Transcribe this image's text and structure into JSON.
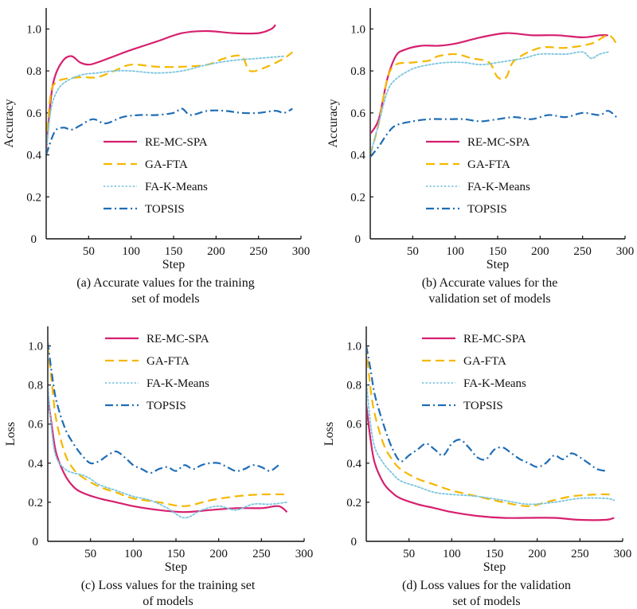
{
  "colors": {
    "RE-MC-SPA": "#d6206f",
    "GA-FTA": "#f5b800",
    "FA-K-Means": "#7cc6df",
    "TOPSIS": "#1f6db5",
    "axis": "#111111"
  },
  "series_styles": {
    "RE-MC-SPA": "solid",
    "GA-FTA": "dashed",
    "FA-K-Means": "dotted",
    "TOPSIS": "dash-dot"
  },
  "chart_data": [
    {
      "id": "a",
      "type": "line",
      "caption": [
        "(a) Accurate values for the training",
        "set of models"
      ],
      "xlabel": "Step",
      "ylabel": "Accuracy",
      "xlim": [
        0,
        300
      ],
      "ylim": [
        0,
        1.1
      ],
      "xticks": [
        "50",
        "100",
        "150",
        "200",
        "250",
        "300"
      ],
      "yticks": [
        "0.2",
        "0.4",
        "0.6",
        "0.8",
        "1.0"
      ],
      "origin_label": "0",
      "legend": [
        "RE-MC-SPA",
        "GA-FTA",
        "FA-K-Means",
        "TOPSIS"
      ],
      "series": [
        {
          "name": "RE-MC-SPA",
          "x": [
            0,
            5,
            10,
            20,
            30,
            40,
            50,
            60,
            80,
            100,
            130,
            160,
            190,
            220,
            250,
            265,
            270
          ],
          "y": [
            0.42,
            0.65,
            0.77,
            0.85,
            0.87,
            0.84,
            0.83,
            0.84,
            0.87,
            0.9,
            0.94,
            0.98,
            0.99,
            0.98,
            0.98,
            1.0,
            1.02
          ]
        },
        {
          "name": "GA-FTA",
          "x": [
            0,
            5,
            10,
            20,
            40,
            60,
            80,
            100,
            130,
            160,
            190,
            210,
            230,
            240,
            260,
            280,
            290
          ],
          "y": [
            0.45,
            0.68,
            0.74,
            0.76,
            0.77,
            0.77,
            0.8,
            0.83,
            0.82,
            0.82,
            0.83,
            0.86,
            0.87,
            0.8,
            0.82,
            0.86,
            0.89
          ]
        },
        {
          "name": "FA-K-Means",
          "x": [
            0,
            5,
            10,
            20,
            40,
            60,
            80,
            100,
            130,
            160,
            190,
            220,
            250,
            280
          ],
          "y": [
            0.42,
            0.6,
            0.68,
            0.74,
            0.78,
            0.79,
            0.8,
            0.8,
            0.79,
            0.8,
            0.83,
            0.85,
            0.86,
            0.87
          ]
        },
        {
          "name": "TOPSIS",
          "x": [
            0,
            10,
            20,
            30,
            40,
            55,
            70,
            90,
            110,
            130,
            150,
            160,
            170,
            190,
            210,
            230,
            250,
            270,
            280,
            290
          ],
          "y": [
            0.4,
            0.51,
            0.53,
            0.52,
            0.54,
            0.57,
            0.55,
            0.58,
            0.59,
            0.59,
            0.6,
            0.62,
            0.59,
            0.61,
            0.61,
            0.6,
            0.6,
            0.61,
            0.6,
            0.62
          ]
        }
      ]
    },
    {
      "id": "b",
      "type": "line",
      "caption": [
        "(b) Accurate values for the",
        "validation set of models"
      ],
      "xlabel": "Step",
      "ylabel": "Accuracy",
      "xlim": [
        0,
        300
      ],
      "ylim": [
        0,
        1.1
      ],
      "xticks": [
        "50",
        "100",
        "150",
        "200",
        "250",
        "300"
      ],
      "yticks": [
        "0.2",
        "0.4",
        "0.6",
        "0.8",
        "1.0"
      ],
      "origin_label": "0",
      "legend": [
        "RE-MC-SPA",
        "GA-FTA",
        "FA-K-Means",
        "TOPSIS"
      ],
      "series": [
        {
          "name": "RE-MC-SPA",
          "x": [
            0,
            10,
            20,
            30,
            40,
            60,
            80,
            100,
            130,
            160,
            190,
            220,
            250,
            270,
            280
          ],
          "y": [
            0.5,
            0.57,
            0.76,
            0.87,
            0.9,
            0.92,
            0.92,
            0.93,
            0.96,
            0.98,
            0.97,
            0.97,
            0.96,
            0.97,
            0.97
          ]
        },
        {
          "name": "GA-FTA",
          "x": [
            0,
            10,
            20,
            30,
            50,
            70,
            80,
            100,
            120,
            140,
            150,
            160,
            170,
            200,
            230,
            260,
            280,
            290
          ],
          "y": [
            0.4,
            0.55,
            0.76,
            0.83,
            0.84,
            0.85,
            0.87,
            0.88,
            0.86,
            0.84,
            0.77,
            0.77,
            0.85,
            0.91,
            0.91,
            0.93,
            0.97,
            0.93
          ]
        },
        {
          "name": "FA-K-Means",
          "x": [
            0,
            10,
            20,
            30,
            50,
            70,
            90,
            110,
            130,
            150,
            180,
            200,
            230,
            250,
            260,
            270,
            280
          ],
          "y": [
            0.4,
            0.55,
            0.7,
            0.76,
            0.81,
            0.83,
            0.84,
            0.84,
            0.83,
            0.84,
            0.86,
            0.88,
            0.88,
            0.89,
            0.86,
            0.88,
            0.89
          ]
        },
        {
          "name": "TOPSIS",
          "x": [
            0,
            10,
            20,
            30,
            50,
            70,
            90,
            110,
            130,
            150,
            170,
            190,
            210,
            230,
            250,
            270,
            280,
            290
          ],
          "y": [
            0.39,
            0.44,
            0.5,
            0.54,
            0.56,
            0.57,
            0.57,
            0.57,
            0.56,
            0.57,
            0.58,
            0.57,
            0.59,
            0.58,
            0.6,
            0.59,
            0.61,
            0.58
          ]
        }
      ]
    },
    {
      "id": "c",
      "type": "line",
      "caption": [
        "(c) Loss values for the training set",
        "of models"
      ],
      "xlabel": "Step",
      "ylabel": "Loss",
      "xlim": [
        0,
        300
      ],
      "ylim": [
        0,
        1.1
      ],
      "xticks": [
        "50",
        "100",
        "150",
        "200",
        "250",
        "300"
      ],
      "yticks": [
        "0.2",
        "0.4",
        "0.6",
        "0.8",
        "1.0"
      ],
      "origin_label": "0",
      "legend": [
        "RE-MC-SPA",
        "GA-FTA",
        "FA-K-Means",
        "TOPSIS"
      ],
      "series": [
        {
          "name": "RE-MC-SPA",
          "x": [
            0,
            5,
            10,
            20,
            30,
            40,
            60,
            80,
            100,
            130,
            160,
            190,
            220,
            250,
            270,
            280
          ],
          "y": [
            0.75,
            0.58,
            0.45,
            0.34,
            0.28,
            0.25,
            0.22,
            0.2,
            0.18,
            0.16,
            0.15,
            0.16,
            0.17,
            0.17,
            0.18,
            0.15
          ]
        },
        {
          "name": "GA-FTA",
          "x": [
            0,
            5,
            10,
            20,
            30,
            40,
            60,
            80,
            100,
            130,
            160,
            190,
            220,
            250,
            280
          ],
          "y": [
            1.0,
            0.8,
            0.62,
            0.45,
            0.37,
            0.33,
            0.28,
            0.25,
            0.22,
            0.2,
            0.18,
            0.21,
            0.23,
            0.24,
            0.24
          ]
        },
        {
          "name": "FA-K-Means",
          "x": [
            0,
            5,
            10,
            20,
            30,
            40,
            50,
            60,
            80,
            100,
            120,
            140,
            160,
            180,
            200,
            220,
            240,
            260,
            280
          ],
          "y": [
            0.8,
            0.55,
            0.43,
            0.37,
            0.35,
            0.34,
            0.32,
            0.29,
            0.26,
            0.23,
            0.21,
            0.17,
            0.12,
            0.16,
            0.18,
            0.16,
            0.19,
            0.19,
            0.2
          ]
        },
        {
          "name": "TOPSIS",
          "x": [
            0,
            5,
            10,
            20,
            30,
            40,
            50,
            60,
            70,
            80,
            90,
            100,
            110,
            120,
            130,
            140,
            150,
            160,
            170,
            180,
            190,
            200,
            210,
            220,
            230,
            240,
            250,
            260,
            270
          ],
          "y": [
            1.02,
            0.85,
            0.72,
            0.58,
            0.5,
            0.44,
            0.4,
            0.41,
            0.44,
            0.46,
            0.43,
            0.39,
            0.37,
            0.35,
            0.37,
            0.38,
            0.36,
            0.39,
            0.37,
            0.39,
            0.4,
            0.4,
            0.38,
            0.36,
            0.37,
            0.39,
            0.38,
            0.36,
            0.39
          ]
        }
      ]
    },
    {
      "id": "d",
      "type": "line",
      "caption": [
        "(d) Loss values for the validation",
        "set of models"
      ],
      "xlabel": "Step",
      "ylabel": "Loss",
      "xlim": [
        0,
        300
      ],
      "ylim": [
        0,
        1.1
      ],
      "xticks": [
        "50",
        "100",
        "150",
        "200",
        "250",
        "300"
      ],
      "yticks": [
        "0.2",
        "0.4",
        "0.6",
        "0.8",
        "1.0"
      ],
      "origin_label": "0",
      "legend": [
        "RE-MC-SPA",
        "GA-FTA",
        "FA-K-Means",
        "TOPSIS"
      ],
      "series": [
        {
          "name": "RE-MC-SPA",
          "x": [
            0,
            5,
            10,
            20,
            30,
            40,
            60,
            80,
            100,
            130,
            160,
            190,
            220,
            250,
            280,
            290
          ],
          "y": [
            0.7,
            0.52,
            0.4,
            0.3,
            0.25,
            0.22,
            0.19,
            0.17,
            0.15,
            0.13,
            0.12,
            0.12,
            0.12,
            0.11,
            0.11,
            0.12
          ]
        },
        {
          "name": "GA-FTA",
          "x": [
            0,
            5,
            10,
            20,
            30,
            40,
            60,
            80,
            100,
            130,
            160,
            190,
            210,
            240,
            270,
            285
          ],
          "y": [
            1.0,
            0.78,
            0.65,
            0.5,
            0.42,
            0.37,
            0.32,
            0.29,
            0.26,
            0.23,
            0.2,
            0.18,
            0.2,
            0.23,
            0.24,
            0.24
          ]
        },
        {
          "name": "FA-K-Means",
          "x": [
            0,
            5,
            10,
            20,
            30,
            40,
            60,
            80,
            100,
            130,
            160,
            190,
            220,
            250,
            280,
            290
          ],
          "y": [
            0.82,
            0.6,
            0.48,
            0.4,
            0.35,
            0.31,
            0.28,
            0.25,
            0.24,
            0.23,
            0.21,
            0.19,
            0.2,
            0.22,
            0.22,
            0.21
          ]
        },
        {
          "name": "TOPSIS",
          "x": [
            0,
            5,
            10,
            20,
            30,
            40,
            50,
            60,
            70,
            80,
            90,
            100,
            110,
            120,
            130,
            140,
            150,
            160,
            170,
            180,
            190,
            200,
            210,
            220,
            230,
            240,
            250,
            260,
            270,
            280
          ],
          "y": [
            1.0,
            0.88,
            0.75,
            0.6,
            0.48,
            0.41,
            0.44,
            0.47,
            0.5,
            0.47,
            0.44,
            0.5,
            0.52,
            0.48,
            0.43,
            0.42,
            0.47,
            0.48,
            0.45,
            0.42,
            0.4,
            0.38,
            0.4,
            0.44,
            0.42,
            0.45,
            0.43,
            0.4,
            0.37,
            0.36
          ]
        }
      ]
    }
  ]
}
